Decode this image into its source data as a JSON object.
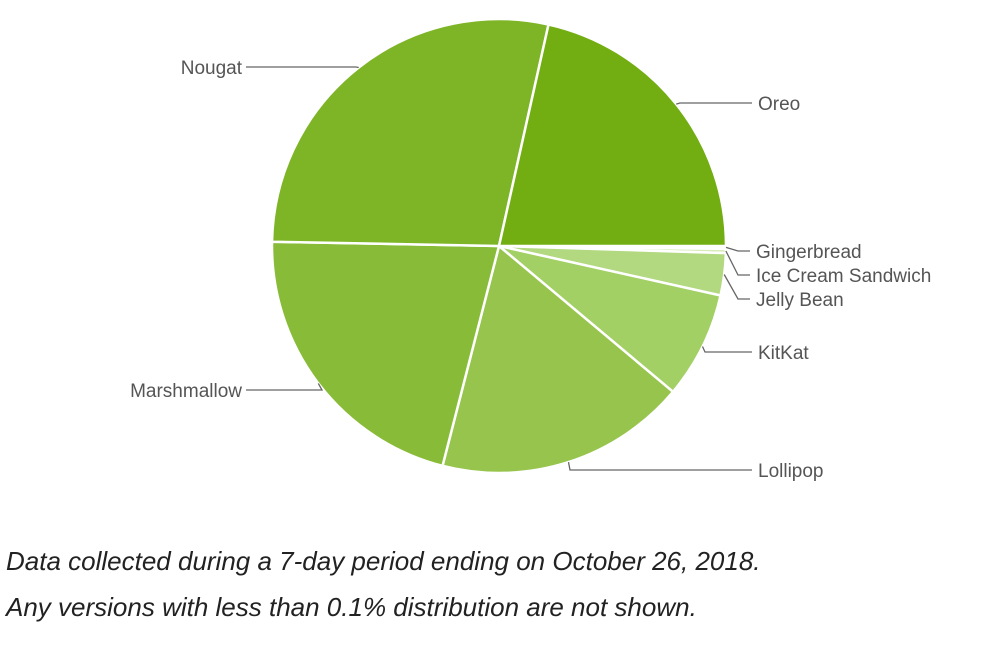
{
  "chart_data": {
    "type": "pie",
    "slices": [
      {
        "label": "Gingerbread",
        "value": 0.2,
        "color": "#e9f3d4"
      },
      {
        "label": "Ice Cream Sandwich",
        "value": 0.3,
        "color": "#d8ebb6"
      },
      {
        "label": "Jelly Bean",
        "value": 3.0,
        "color": "#b2d880"
      },
      {
        "label": "KitKat",
        "value": 7.6,
        "color": "#a2d064"
      },
      {
        "label": "Lollipop",
        "value": 17.9,
        "color": "#96c44c"
      },
      {
        "label": "Marshmallow",
        "value": 21.3,
        "color": "#88bc38"
      },
      {
        "label": "Nougat",
        "value": 28.2,
        "color": "#7db527"
      },
      {
        "label": "Oreo",
        "value": 21.5,
        "color": "#72ad12"
      }
    ],
    "start_direction": "east",
    "direction": "clockwise"
  },
  "caption": {
    "line1": "Data collected during a 7-day period ending on October 26, 2018.",
    "line2": "Any versions with less than 0.1% distribution are not shown."
  }
}
